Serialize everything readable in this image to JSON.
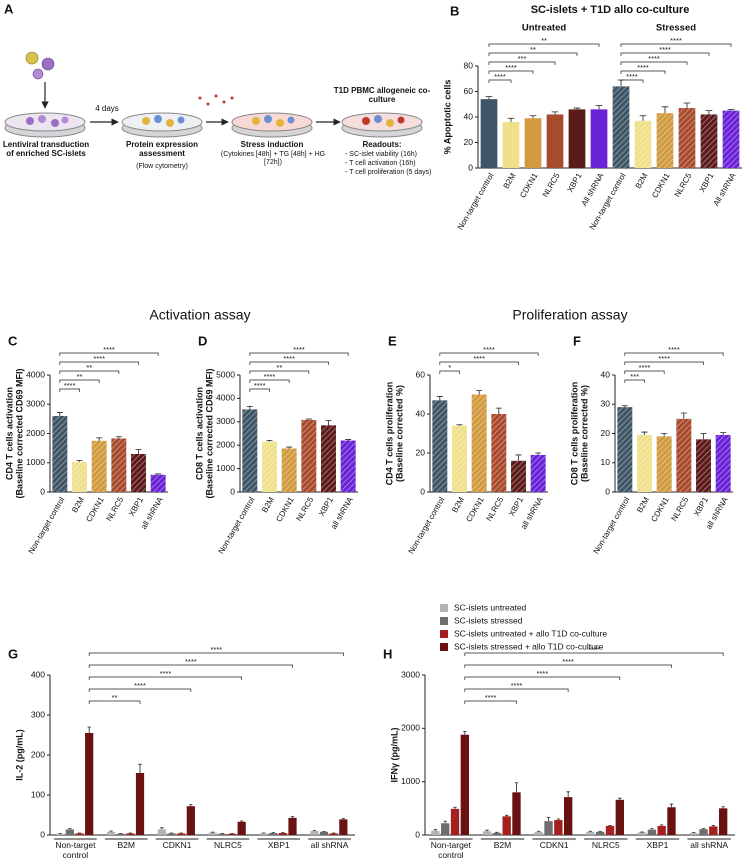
{
  "panel_a": {
    "panel": "A",
    "interval": "4 days",
    "steps": [
      {
        "title": "Lentiviral transduction of enriched SC-islets"
      },
      {
        "title": "Protein expression assessment",
        "note": "(Flow cytometry)"
      },
      {
        "title": "Stress induction",
        "note": "(Cytokines [48h] + TG [48h] + HG [72h])"
      },
      {
        "title": "T1D PBMC allogeneic co-culture",
        "readouts_title": "Readouts:",
        "readouts": [
          "- SC-islet viability (16h)",
          "- T cell activation (16h)",
          "- T cell proliferation (5 days)"
        ]
      }
    ]
  },
  "sections": [
    "Activation assay",
    "Proliferation assay"
  ],
  "chart_data": [
    {
      "type": "bar",
      "panel": "B",
      "title": "SC-islets + T1D allo co-culture",
      "ylabel": "% Apoptotic cells",
      "categories": [
        "Non-target control",
        "B2M",
        "CDKN1",
        "NLRC5",
        "XBP1",
        "All shRNA"
      ],
      "colors": [
        "#3e5566",
        "#efe08a",
        "#d29a3e",
        "#a84a2c",
        "#5c1a1a",
        "#6a22d6"
      ],
      "groups": [
        {
          "name": "Untreated",
          "values": [
            54,
            36,
            39,
            42,
            46,
            46
          ],
          "errors": [
            2,
            3,
            2,
            2,
            1,
            3
          ],
          "significance": [
            null,
            "****",
            "****",
            "***",
            "**",
            "**"
          ]
        },
        {
          "name": "Stressed",
          "hatch": true,
          "values": [
            64,
            37,
            43,
            47,
            42,
            45
          ],
          "errors": [
            5,
            4,
            5,
            4,
            3,
            1
          ],
          "significance": [
            null,
            "****",
            "****",
            "****",
            "****",
            "****"
          ]
        }
      ],
      "ylim": [
        0,
        80
      ],
      "yticks": [
        0,
        20,
        40,
        60,
        80
      ]
    },
    {
      "type": "bar",
      "panel": "C",
      "ylabel": [
        "CD4 T cells activation",
        "(Baseline corrected CD69 MFI)"
      ],
      "hatch": true,
      "categories": [
        "Non-target control",
        "B2M",
        "CDKN1",
        "NLRC5",
        "XBP1",
        "all shRNA"
      ],
      "colors": [
        "#3e5566",
        "#efe08a",
        "#d29a3e",
        "#a84a2c",
        "#5c1a1a",
        "#6a22d6"
      ],
      "values": [
        2600,
        1030,
        1750,
        1830,
        1300,
        590
      ],
      "errors": [
        120,
        50,
        100,
        60,
        150,
        30
      ],
      "significance": [
        null,
        "****",
        "**",
        "**",
        "****",
        "****"
      ],
      "ylim": [
        0,
        4000
      ],
      "yticks": [
        0,
        1000,
        2000,
        3000,
        4000
      ]
    },
    {
      "type": "bar",
      "panel": "D",
      "ylabel": [
        "CD8 T cells activation",
        "(Baseline corrected CD69 MFI)"
      ],
      "hatch": true,
      "categories": [
        "Non-target control",
        "B2M",
        "CDKN1",
        "NLRC5",
        "XBP1",
        "all shRNA"
      ],
      "colors": [
        "#3e5566",
        "#efe08a",
        "#d29a3e",
        "#a84a2c",
        "#5c1a1a",
        "#6a22d6"
      ],
      "values": [
        3530,
        2150,
        1860,
        3080,
        2850,
        2200
      ],
      "errors": [
        130,
        50,
        60,
        40,
        200,
        40
      ],
      "significance": [
        null,
        "****",
        "****",
        "**",
        "****",
        "****"
      ],
      "ylim": [
        0,
        5000
      ],
      "yticks": [
        0,
        1000,
        2000,
        3000,
        4000,
        5000
      ]
    },
    {
      "type": "bar",
      "panel": "E",
      "ylabel": [
        "CD4 T cells proliferation",
        "(Baseline corrected %)"
      ],
      "hatch": true,
      "categories": [
        "Non-target control",
        "B2M",
        "CDKN1",
        "NLRC5",
        "XBP1",
        "all shRNA"
      ],
      "colors": [
        "#3e5566",
        "#efe08a",
        "#d29a3e",
        "#a84a2c",
        "#5c1a1a",
        "#6a22d6"
      ],
      "values": [
        47,
        34,
        50,
        40,
        16,
        19
      ],
      "errors": [
        2,
        0.5,
        2,
        3,
        3,
        1
      ],
      "significance": [
        null,
        "*",
        null,
        null,
        "****",
        "****"
      ],
      "ylim": [
        0,
        60
      ],
      "yticks": [
        0,
        20,
        40,
        60
      ]
    },
    {
      "type": "bar",
      "panel": "F",
      "ylabel": [
        "CD8 T cells proliferation",
        "(Baseline corrected %)"
      ],
      "hatch": true,
      "categories": [
        "Non-target control",
        "B2M",
        "CDKN1",
        "NLRC5",
        "XBP1",
        "all shRNA"
      ],
      "colors": [
        "#3e5566",
        "#efe08a",
        "#d29a3e",
        "#a84a2c",
        "#5c1a1a",
        "#6a22d6"
      ],
      "values": [
        29,
        19.5,
        19,
        25,
        18,
        19.5
      ],
      "errors": [
        0.5,
        1,
        1,
        2,
        2,
        0.8
      ],
      "significance": [
        null,
        "***",
        "****",
        null,
        "****",
        "****"
      ],
      "ylim": [
        0,
        40
      ],
      "yticks": [
        0,
        10,
        20,
        30,
        40
      ]
    },
    {
      "type": "grouped_bar",
      "panel": "G",
      "ylabel": "IL-2 (pg/mL)",
      "legend": "top right",
      "categories": [
        "Non-target control",
        "B2M",
        "CDKN1",
        "NLRC5",
        "XBP1",
        "all shRNA"
      ],
      "series": [
        {
          "name": "SC-islets untreated",
          "color": "#b3b3b3",
          "values": [
            3,
            8,
            14,
            6,
            4,
            10
          ],
          "errors": [
            1,
            2,
            4,
            1,
            1,
            1
          ]
        },
        {
          "name": "SC-islets stressed",
          "color": "#6e6e6e",
          "values": [
            14,
            3,
            4,
            3,
            5,
            8
          ],
          "errors": [
            2,
            1,
            1,
            1,
            1,
            1
          ]
        },
        {
          "name": "SC-islets untreated + allo T1D co-culture",
          "color": "#a3201f",
          "values": [
            4,
            4,
            4,
            3,
            5,
            4
          ],
          "errors": [
            1,
            1,
            1,
            1,
            1,
            1
          ]
        },
        {
          "name": "SC-islets stressed + allo T1D co-culture",
          "color": "#6a1212",
          "values": [
            255,
            155,
            72,
            33,
            43,
            39
          ],
          "errors": [
            15,
            22,
            4,
            2,
            3,
            2
          ]
        }
      ],
      "significance": [
        null,
        "**",
        "****",
        "****",
        "****",
        "****"
      ],
      "ylim": [
        0,
        400
      ],
      "yticks": [
        0,
        100,
        200,
        300,
        400
      ]
    },
    {
      "type": "grouped_bar",
      "panel": "H",
      "ylabel": "IFNγ (pg/mL)",
      "categories": [
        "Non-target control",
        "B2M",
        "CDKN1",
        "NLRC5",
        "XBP1",
        "all shRNA"
      ],
      "series": [
        {
          "color": "#b3b3b3",
          "values": [
            80,
            70,
            60,
            60,
            50,
            40
          ],
          "errors": [
            20,
            20,
            10,
            10,
            5,
            5
          ]
        },
        {
          "color": "#6e6e6e",
          "values": [
            220,
            40,
            260,
            60,
            100,
            110
          ],
          "errors": [
            40,
            10,
            70,
            10,
            20,
            10
          ]
        },
        {
          "color": "#a3201f",
          "values": [
            490,
            350,
            280,
            170,
            170,
            160
          ],
          "errors": [
            30,
            20,
            20,
            10,
            20,
            20
          ]
        },
        {
          "color": "#6a1212",
          "values": [
            1880,
            800,
            710,
            660,
            520,
            500
          ],
          "errors": [
            60,
            180,
            100,
            30,
            60,
            30
          ]
        }
      ],
      "significance": [
        null,
        "****",
        "****",
        "****",
        "****",
        "****"
      ],
      "ylim": [
        0,
        3000
      ],
      "yticks": [
        0,
        1000,
        2000,
        3000
      ]
    }
  ]
}
